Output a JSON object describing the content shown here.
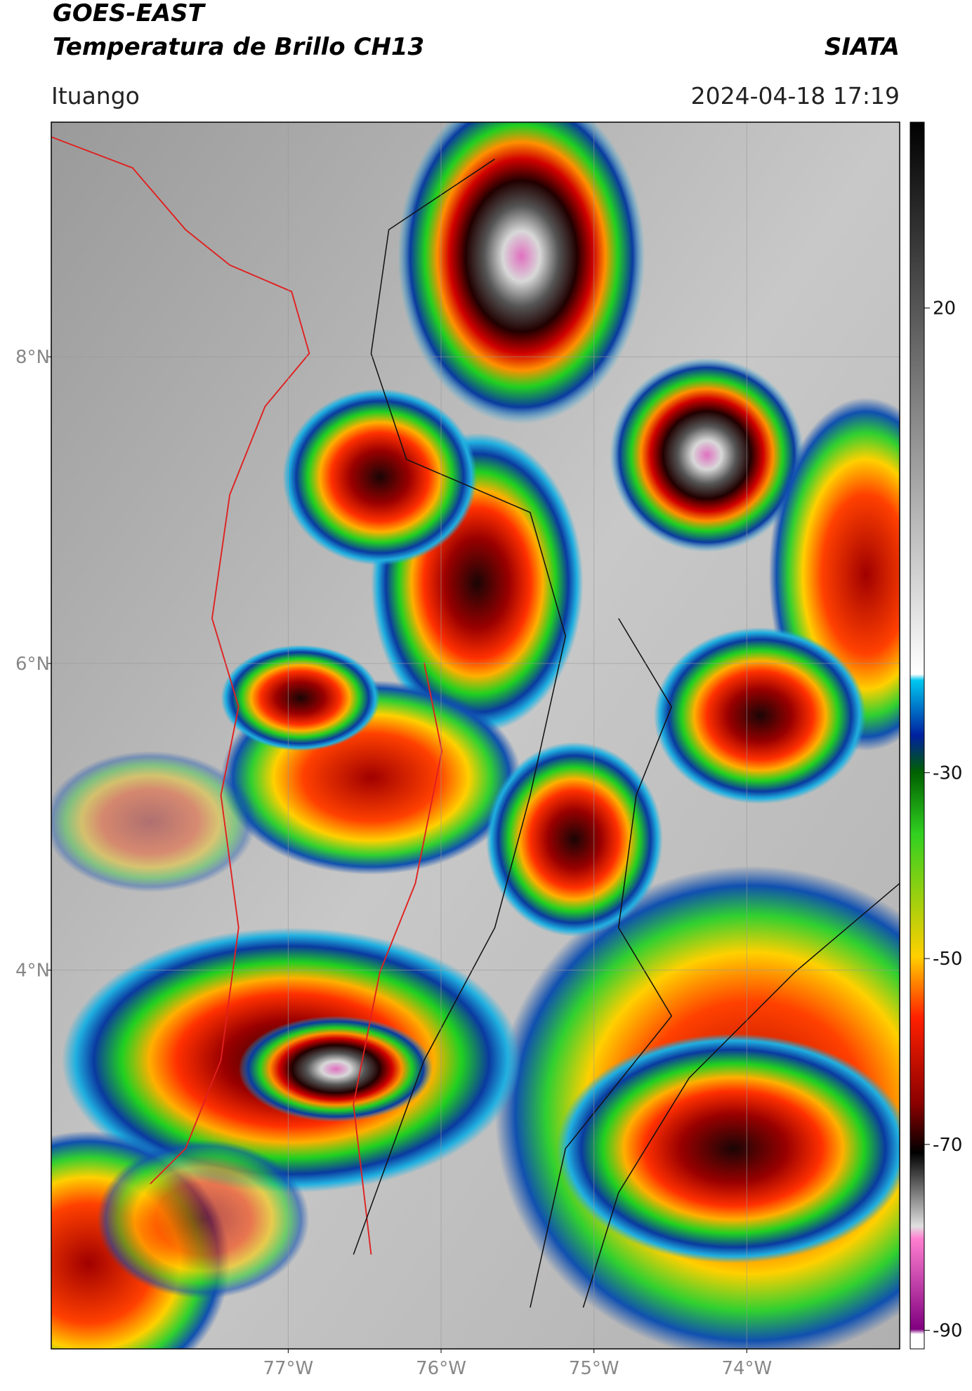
{
  "header": {
    "title": "GOES-EAST",
    "subtitle": "Temperatura de Brillo CH13",
    "source": "SIATA",
    "location": "Ituango",
    "datetime": "2024-04-18 17:19"
  },
  "map": {
    "type": "map",
    "latlim": [
      1.53,
      9.53
    ],
    "lonlim": [
      -78.55,
      -73.0
    ],
    "latticks": [
      {
        "value": 8,
        "label": "8°N"
      },
      {
        "value": 6,
        "label": "6°N"
      },
      {
        "value": 4,
        "label": "4°N"
      }
    ],
    "lonticks": [
      {
        "value": -77,
        "label": "77°W"
      },
      {
        "value": -76,
        "label": "76°W"
      },
      {
        "value": -75,
        "label": "75°W"
      },
      {
        "value": -74,
        "label": "74°W"
      }
    ],
    "grid": true
  },
  "colorbar": {
    "lim": [
      -92,
      40
    ],
    "ticks": [
      20,
      -30,
      -50,
      -70,
      -90
    ]
  }
}
